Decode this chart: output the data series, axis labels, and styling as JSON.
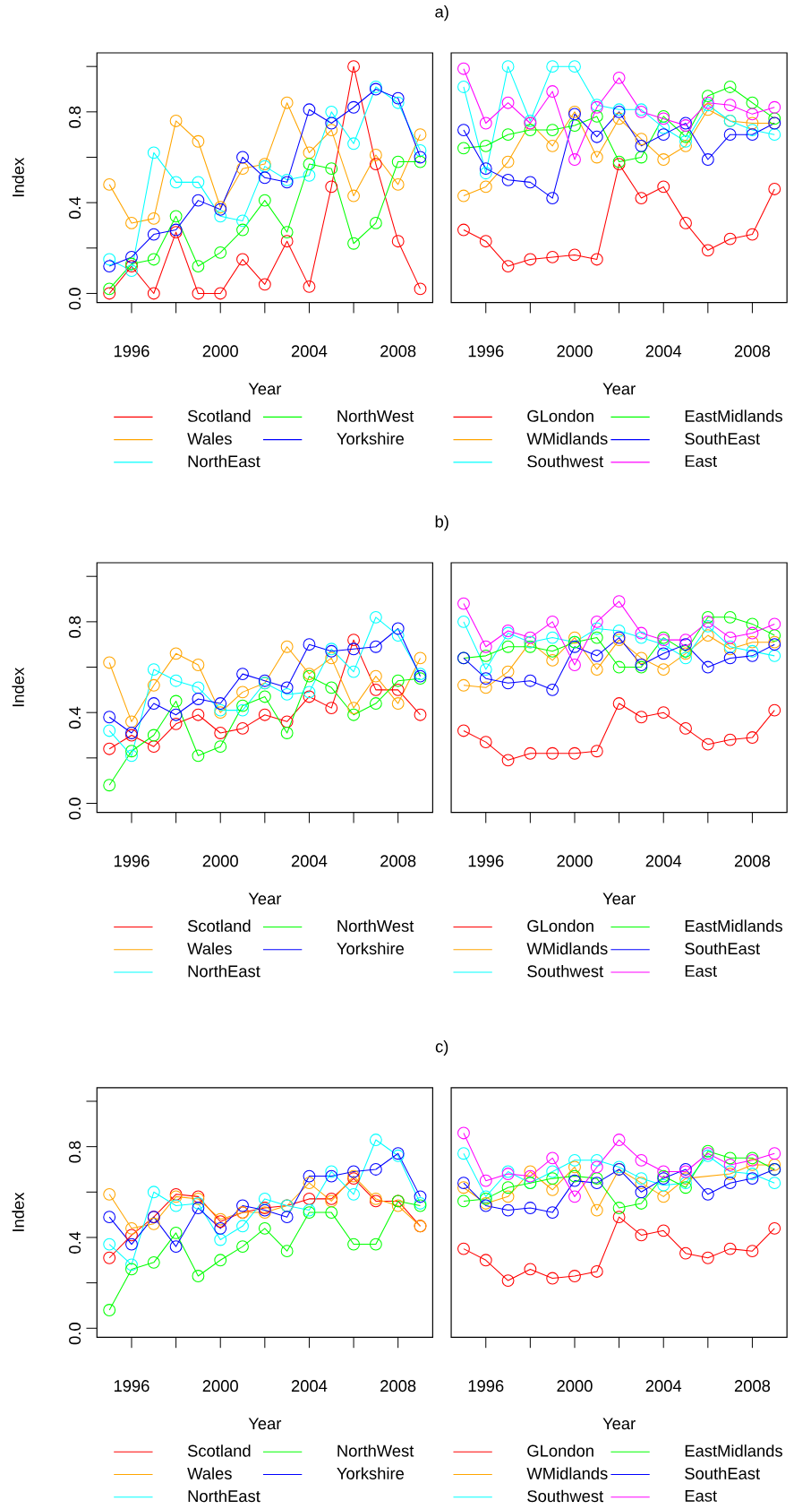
{
  "chart_data": [
    {
      "type": "line",
      "title": "a)",
      "xlabel": "Year",
      "ylabel": "Index",
      "x": [
        1995,
        1996,
        1997,
        1998,
        1999,
        2000,
        2001,
        2002,
        2003,
        2004,
        2005,
        2006,
        2007,
        2008,
        2009
      ],
      "xlim": [
        1994.44,
        2009.56
      ],
      "ylim": [
        -0.04,
        1.06
      ],
      "xticks": [
        1996,
        {
          "value": 1998,
          "label": null
        },
        2000,
        {
          "value": 2002,
          "label": null
        },
        2004,
        {
          "value": 2006,
          "label": null
        },
        2008
      ],
      "yticks": [
        {
          "value": 0,
          "label": "0.0"
        },
        {
          "value": 0.2,
          "label": null
        },
        {
          "value": 0.4,
          "label": "0.4"
        },
        {
          "value": 0.6,
          "label": null
        },
        {
          "value": 0.8,
          "label": "0.8"
        },
        {
          "value": 1.0,
          "label": null
        }
      ],
      "marker": "circle",
      "legend": "bottom",
      "series": [
        {
          "name": "Scotland",
          "color": "#ff0000",
          "values": [
            0.0,
            0.12,
            0.0,
            0.27,
            0.0,
            0.0,
            0.15,
            0.04,
            0.23,
            0.03,
            0.47,
            1.0,
            0.57,
            0.23,
            0.02
          ]
        },
        {
          "name": "Wales",
          "color": "#ffa500",
          "values": [
            0.48,
            0.31,
            0.33,
            0.76,
            0.67,
            0.38,
            0.55,
            0.57,
            0.84,
            0.62,
            0.72,
            0.43,
            0.61,
            0.48,
            0.7
          ]
        },
        {
          "name": "NorthEast",
          "color": "#00ffff",
          "values": [
            0.15,
            0.1,
            0.62,
            0.49,
            0.49,
            0.34,
            0.32,
            0.56,
            0.5,
            0.52,
            0.8,
            0.66,
            0.91,
            0.84,
            0.63
          ]
        },
        {
          "name": "NorthWest",
          "color": "#00ff00",
          "values": [
            0.02,
            0.13,
            0.15,
            0.34,
            0.12,
            0.18,
            0.28,
            0.41,
            0.27,
            0.57,
            0.55,
            0.22,
            0.31,
            0.58,
            0.58
          ]
        },
        {
          "name": "Yorkshire",
          "color": "#0000ff",
          "values": [
            0.12,
            0.16,
            0.26,
            0.28,
            0.41,
            0.37,
            0.6,
            0.51,
            0.49,
            0.81,
            0.75,
            0.82,
            0.9,
            0.86,
            0.6
          ]
        }
      ]
    },
    {
      "type": "line",
      "xlabel": "Year",
      "x": [
        1995,
        1996,
        1997,
        1998,
        1999,
        2000,
        2001,
        2002,
        2003,
        2004,
        2005,
        2006,
        2007,
        2008,
        2009
      ],
      "xlim": [
        1994.44,
        2009.56
      ],
      "ylim": [
        -0.04,
        1.06
      ],
      "xticks": [
        1996,
        {
          "value": 1998,
          "label": null
        },
        2000,
        {
          "value": 2002,
          "label": null
        },
        2004,
        {
          "value": 2006,
          "label": null
        },
        2008
      ],
      "tick_labels": "x",
      "marker": "circle",
      "legend": "bottom",
      "series": [
        {
          "name": "GLondon",
          "color": "#ff0000",
          "values": [
            0.28,
            0.23,
            0.12,
            0.15,
            0.16,
            0.17,
            0.15,
            0.57,
            0.42,
            0.47,
            0.31,
            0.19,
            0.24,
            0.26,
            0.46
          ]
        },
        {
          "name": "WMidlands",
          "color": "#ffa500",
          "values": [
            0.43,
            0.47,
            0.58,
            0.75,
            0.65,
            0.8,
            0.6,
            0.77,
            0.68,
            0.59,
            0.65,
            0.81,
            0.76,
            0.75,
            0.75
          ]
        },
        {
          "name": "Southwest",
          "color": "#00ffff",
          "values": [
            0.91,
            0.53,
            1.0,
            0.76,
            1.0,
            1.0,
            0.83,
            0.81,
            0.81,
            0.73,
            0.67,
            0.83,
            0.76,
            0.72,
            0.7
          ]
        },
        {
          "name": "EastMidlands",
          "color": "#00ff00",
          "values": [
            0.64,
            0.65,
            0.7,
            0.72,
            0.72,
            0.74,
            0.78,
            0.58,
            0.6,
            0.78,
            0.69,
            0.87,
            0.91,
            0.84,
            0.77
          ]
        },
        {
          "name": "SouthEast",
          "color": "#0000ff",
          "values": [
            0.72,
            0.55,
            0.5,
            0.49,
            0.42,
            0.79,
            0.69,
            0.8,
            0.65,
            0.7,
            0.75,
            0.59,
            0.7,
            0.7,
            0.75
          ]
        },
        {
          "name": "East",
          "color": "#ff00ff",
          "values": [
            0.99,
            0.75,
            0.84,
            0.75,
            0.89,
            0.59,
            0.82,
            0.95,
            0.8,
            0.77,
            0.74,
            0.84,
            0.83,
            0.79,
            0.82
          ]
        }
      ]
    },
    {
      "type": "line",
      "title": "b)",
      "xlabel": "Year",
      "ylabel": "Index",
      "x": [
        1995,
        1996,
        1997,
        1998,
        1999,
        2000,
        2001,
        2002,
        2003,
        2004,
        2005,
        2006,
        2007,
        2008,
        2009
      ],
      "xlim": [
        1994.44,
        2009.56
      ],
      "ylim": [
        -0.04,
        1.06
      ],
      "xticks": [
        1996,
        {
          "value": 1998,
          "label": null
        },
        2000,
        {
          "value": 2002,
          "label": null
        },
        2004,
        {
          "value": 2006,
          "label": null
        },
        2008
      ],
      "yticks": [
        {
          "value": 0,
          "label": "0.0"
        },
        {
          "value": 0.2,
          "label": null
        },
        {
          "value": 0.4,
          "label": "0.4"
        },
        {
          "value": 0.6,
          "label": null
        },
        {
          "value": 0.8,
          "label": "0.8"
        },
        {
          "value": 1.0,
          "label": null
        }
      ],
      "marker": "circle",
      "legend": "bottom",
      "series": [
        {
          "name": "Scotland",
          "color": "#ff0000",
          "values": [
            0.24,
            0.3,
            0.25,
            0.35,
            0.39,
            0.31,
            0.33,
            0.39,
            0.36,
            0.47,
            0.42,
            0.72,
            0.5,
            0.5,
            0.39
          ]
        },
        {
          "name": "Wales",
          "color": "#ffa500",
          "values": [
            0.62,
            0.36,
            0.52,
            0.66,
            0.61,
            0.4,
            0.49,
            0.53,
            0.69,
            0.57,
            0.64,
            0.42,
            0.56,
            0.44,
            0.64
          ]
        },
        {
          "name": "NorthEast",
          "color": "#00ffff",
          "values": [
            0.32,
            0.21,
            0.59,
            0.54,
            0.51,
            0.41,
            0.41,
            0.53,
            0.48,
            0.49,
            0.68,
            0.58,
            0.82,
            0.74,
            0.57
          ]
        },
        {
          "name": "NorthWest",
          "color": "#00ff00",
          "values": [
            0.08,
            0.23,
            0.3,
            0.45,
            0.21,
            0.25,
            0.43,
            0.47,
            0.31,
            0.56,
            0.51,
            0.39,
            0.44,
            0.54,
            0.55
          ]
        },
        {
          "name": "Yorkshire",
          "color": "#0000ff",
          "values": [
            0.38,
            0.31,
            0.44,
            0.39,
            0.46,
            0.44,
            0.57,
            0.54,
            0.51,
            0.7,
            0.67,
            0.68,
            0.69,
            0.77,
            0.56
          ]
        }
      ]
    },
    {
      "type": "line",
      "xlabel": "Year",
      "x": [
        1995,
        1996,
        1997,
        1998,
        1999,
        2000,
        2001,
        2002,
        2003,
        2004,
        2005,
        2006,
        2007,
        2008,
        2009
      ],
      "xlim": [
        1994.44,
        2009.56
      ],
      "ylim": [
        -0.04,
        1.06
      ],
      "xticks": [
        1996,
        {
          "value": 1998,
          "label": null
        },
        2000,
        {
          "value": 2002,
          "label": null
        },
        2004,
        {
          "value": 2006,
          "label": null
        },
        2008
      ],
      "tick_labels": "x",
      "marker": "circle",
      "legend": "bottom",
      "series": [
        {
          "name": "GLondon",
          "color": "#ff0000",
          "values": [
            0.32,
            0.27,
            0.19,
            0.22,
            0.22,
            0.22,
            0.23,
            0.44,
            0.38,
            0.4,
            0.33,
            0.26,
            0.28,
            0.29,
            0.41
          ]
        },
        {
          "name": "WMidlands",
          "color": "#ffa500",
          "values": [
            0.52,
            0.51,
            0.58,
            0.71,
            0.63,
            0.73,
            0.59,
            0.72,
            0.64,
            0.59,
            0.66,
            0.74,
            0.68,
            0.71,
            0.71
          ]
        },
        {
          "name": "Southwest",
          "color": "#00ffff",
          "values": [
            0.8,
            0.59,
            0.75,
            0.71,
            0.73,
            0.71,
            0.77,
            0.76,
            0.73,
            0.7,
            0.64,
            0.78,
            0.69,
            0.67,
            0.65
          ]
        },
        {
          "name": "EastMidlands",
          "color": "#00ff00",
          "values": [
            0.64,
            0.65,
            0.69,
            0.69,
            0.67,
            0.71,
            0.73,
            0.6,
            0.6,
            0.73,
            0.67,
            0.82,
            0.82,
            0.79,
            0.74
          ]
        },
        {
          "name": "SouthEast",
          "color": "#0000ff",
          "values": [
            0.64,
            0.55,
            0.53,
            0.54,
            0.5,
            0.69,
            0.65,
            0.73,
            0.61,
            0.66,
            0.7,
            0.6,
            0.64,
            0.65,
            0.7
          ]
        },
        {
          "name": "East",
          "color": "#ff00ff",
          "values": [
            0.88,
            0.69,
            0.76,
            0.73,
            0.8,
            0.61,
            0.8,
            0.89,
            0.75,
            0.72,
            0.72,
            0.8,
            0.73,
            0.75,
            0.79
          ]
        }
      ]
    },
    {
      "type": "line",
      "title": "c)",
      "xlabel": "Year",
      "ylabel": "Index",
      "x": [
        1995,
        1996,
        1997,
        1998,
        1999,
        2000,
        2001,
        2002,
        2003,
        2004,
        2005,
        2006,
        2007,
        2008,
        2009
      ],
      "xlim": [
        1994.44,
        2009.56
      ],
      "ylim": [
        -0.04,
        1.06
      ],
      "xticks": [
        1996,
        {
          "value": 1998,
          "label": null
        },
        2000,
        {
          "value": 2002,
          "label": null
        },
        2004,
        {
          "value": 2006,
          "label": null
        },
        2008
      ],
      "yticks": [
        {
          "value": 0,
          "label": "0.0"
        },
        {
          "value": 0.2,
          "label": null
        },
        {
          "value": 0.4,
          "label": "0.4"
        },
        {
          "value": 0.6,
          "label": null
        },
        {
          "value": 0.8,
          "label": "0.8"
        },
        {
          "value": 1.0,
          "label": null
        }
      ],
      "marker": "circle",
      "legend": "bottom",
      "series": [
        {
          "name": "Scotland",
          "color": "#ff0000",
          "values": [
            0.31,
            0.41,
            0.49,
            0.59,
            0.58,
            0.47,
            0.51,
            0.53,
            0.54,
            0.57,
            0.57,
            0.66,
            0.56,
            0.56,
            0.45
          ]
        },
        {
          "name": "Wales",
          "color": "#ffa500",
          "values": [
            0.59,
            0.44,
            0.46,
            0.58,
            0.57,
            0.48,
            0.51,
            0.51,
            0.54,
            0.64,
            0.56,
            0.67,
            0.57,
            0.54,
            0.45
          ]
        },
        {
          "name": "NorthEast",
          "color": "#00ffff",
          "values": [
            0.37,
            0.28,
            0.6,
            0.54,
            0.55,
            0.39,
            0.45,
            0.57,
            0.54,
            0.52,
            0.69,
            0.59,
            0.83,
            0.76,
            0.55
          ]
        },
        {
          "name": "NorthWest",
          "color": "#00ff00",
          "values": [
            0.08,
            0.26,
            0.29,
            0.42,
            0.23,
            0.3,
            0.36,
            0.44,
            0.34,
            0.51,
            0.51,
            0.37,
            0.37,
            0.56,
            0.54
          ]
        },
        {
          "name": "Yorkshire",
          "color": "#0000ff",
          "values": [
            0.49,
            0.37,
            0.49,
            0.36,
            0.53,
            0.44,
            0.54,
            0.52,
            0.49,
            0.67,
            0.67,
            0.69,
            0.7,
            0.77,
            0.58
          ]
        }
      ]
    },
    {
      "type": "line",
      "xlabel": "Year",
      "x": [
        1995,
        1996,
        1997,
        1998,
        1999,
        2000,
        2001,
        2002,
        2003,
        2004,
        2005,
        2006,
        2007,
        2008,
        2009
      ],
      "xlim": [
        1994.44,
        2009.56
      ],
      "ylim": [
        -0.04,
        1.06
      ],
      "xticks": [
        1996,
        {
          "value": 1998,
          "label": null
        },
        2000,
        {
          "value": 2002,
          "label": null
        },
        2004,
        {
          "value": 2006,
          "label": null
        },
        2008
      ],
      "tick_labels": "x",
      "marker": "circle",
      "legend": "bottom",
      "series": [
        {
          "name": "GLondon",
          "color": "#ff0000",
          "values": [
            0.35,
            0.3,
            0.21,
            0.26,
            0.22,
            0.23,
            0.25,
            0.49,
            0.41,
            0.43,
            0.33,
            0.31,
            0.35,
            0.34,
            0.44
          ]
        },
        {
          "name": "WMidlands",
          "color": "#ffa500",
          "values": [
            0.62,
            0.55,
            0.58,
            0.69,
            0.61,
            0.71,
            0.52,
            0.7,
            0.64,
            0.58,
            0.66,
            null,
            0.68,
            0.72,
            0.72
          ]
        },
        {
          "name": "Southwest",
          "color": "#00ffff",
          "values": [
            0.77,
            0.58,
            0.69,
            0.64,
            0.69,
            0.74,
            0.74,
            0.71,
            0.66,
            0.63,
            0.64,
            0.76,
            0.69,
            0.68,
            0.64
          ]
        },
        {
          "name": "EastMidlands",
          "color": "#00ff00",
          "values": [
            0.56,
            0.57,
            0.62,
            0.64,
            0.66,
            0.67,
            0.66,
            0.53,
            0.55,
            0.67,
            0.62,
            0.78,
            0.75,
            0.75,
            0.7
          ]
        },
        {
          "name": "SouthEast",
          "color": "#0000ff",
          "values": [
            0.64,
            0.54,
            0.52,
            0.53,
            0.51,
            0.65,
            0.64,
            0.7,
            0.6,
            0.66,
            0.7,
            0.59,
            0.64,
            0.66,
            0.7
          ]
        },
        {
          "name": "East",
          "color": "#ff00ff",
          "values": [
            0.86,
            0.65,
            0.68,
            0.67,
            0.75,
            0.58,
            0.71,
            0.83,
            0.74,
            0.69,
            0.69,
            0.77,
            0.72,
            0.74,
            0.77
          ]
        }
      ]
    }
  ]
}
